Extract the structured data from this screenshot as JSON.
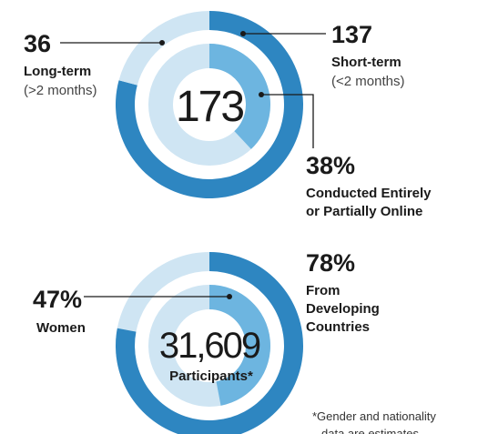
{
  "chart_data": [
    {
      "type": "donut",
      "center_text": "173",
      "outer_ring": {
        "categories": [
          "Short-term",
          "Long-term"
        ],
        "notes": [
          "(<2 months)",
          "(>2 months)"
        ],
        "values": [
          137,
          36
        ],
        "colors": [
          "#2e86c1",
          "#cfe5f3"
        ]
      },
      "inner_ring": {
        "label_lines": [
          "Conducted Entirely",
          "or Partially Online"
        ],
        "values": [
          38
        ],
        "value_labels": [
          "38%"
        ],
        "color": "#6db5e0",
        "track_color": "#cfe5f3"
      }
    },
    {
      "type": "donut",
      "center_text": "31,609",
      "center_subtitle": "Participants*",
      "outer_ring": {
        "label_lines": [
          "From",
          "Developing",
          "Countries"
        ],
        "values": [
          78
        ],
        "value_labels": [
          "78%"
        ],
        "color": "#2e86c1",
        "track_color": "#cfe5f3"
      },
      "inner_ring": {
        "label_lines": [
          "Women"
        ],
        "values": [
          47
        ],
        "value_labels": [
          "47%"
        ],
        "color": "#6db5e0",
        "track_color": "#cfe5f3"
      },
      "footnote": [
        "*Gender and nationality",
        "data are estimates"
      ]
    }
  ]
}
